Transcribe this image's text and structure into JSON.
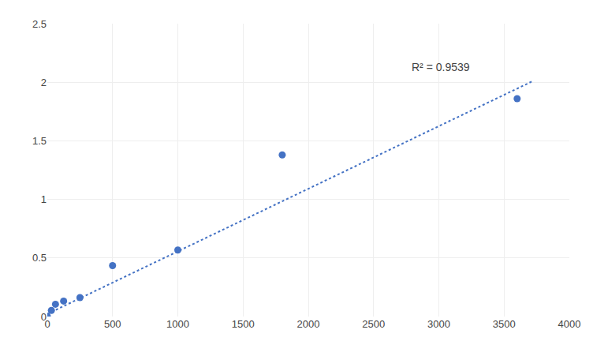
{
  "chart_data": {
    "type": "scatter",
    "series": [
      {
        "type": "scatter",
        "marker": "circle",
        "color": "#4472C4",
        "x": [
          0,
          31.25,
          62.5,
          125,
          250,
          500,
          1000,
          1800,
          3600
        ],
        "values": [
          0.002,
          0.052,
          0.105,
          0.132,
          0.162,
          0.435,
          0.568,
          1.38,
          1.86
        ]
      },
      {
        "type": "line",
        "line_style": "dotted",
        "color": "#4472C4",
        "x": [
          0,
          3720
        ],
        "values": [
          0.022,
          2.01
        ]
      }
    ],
    "annotations": [
      {
        "text": "R² = 0.9539",
        "x": 2780,
        "y": 2.06
      }
    ],
    "xlim": [
      0,
      4000
    ],
    "ylim": [
      0,
      2.5
    ],
    "xticks": [
      0,
      500,
      1000,
      1500,
      2000,
      2500,
      3000,
      3500,
      4000
    ],
    "yticks": [
      0,
      0.5,
      1,
      1.5,
      2,
      2.5
    ],
    "grid": true
  }
}
